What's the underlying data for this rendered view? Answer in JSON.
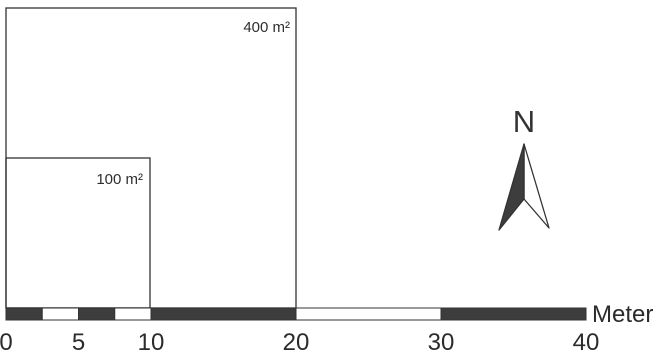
{
  "plots": [
    {
      "id": "plot-400",
      "label": "400 m²",
      "side_m": 20
    },
    {
      "id": "plot-100",
      "label": "100 m²",
      "side_m": 10
    }
  ],
  "north_arrow": {
    "label": "N",
    "icon": "north-arrow-icon"
  },
  "scale_bar": {
    "unit": "Meter",
    "max_m": 40,
    "tick_labels": [
      "0",
      "5",
      "10",
      "20",
      "30",
      "40"
    ],
    "segments": [
      {
        "from_m": 0,
        "to_m": 2.5,
        "fill": "dark"
      },
      {
        "from_m": 2.5,
        "to_m": 5,
        "fill": "light"
      },
      {
        "from_m": 5,
        "to_m": 7.5,
        "fill": "dark"
      },
      {
        "from_m": 7.5,
        "to_m": 10,
        "fill": "light"
      },
      {
        "from_m": 10,
        "to_m": 20,
        "fill": "dark"
      },
      {
        "from_m": 20,
        "to_m": 30,
        "fill": "light"
      },
      {
        "from_m": 30,
        "to_m": 40,
        "fill": "dark"
      }
    ]
  },
  "colors": {
    "outline": "#333333",
    "dark_fill": "#3d3d3d",
    "light_fill": "#ffffff"
  }
}
